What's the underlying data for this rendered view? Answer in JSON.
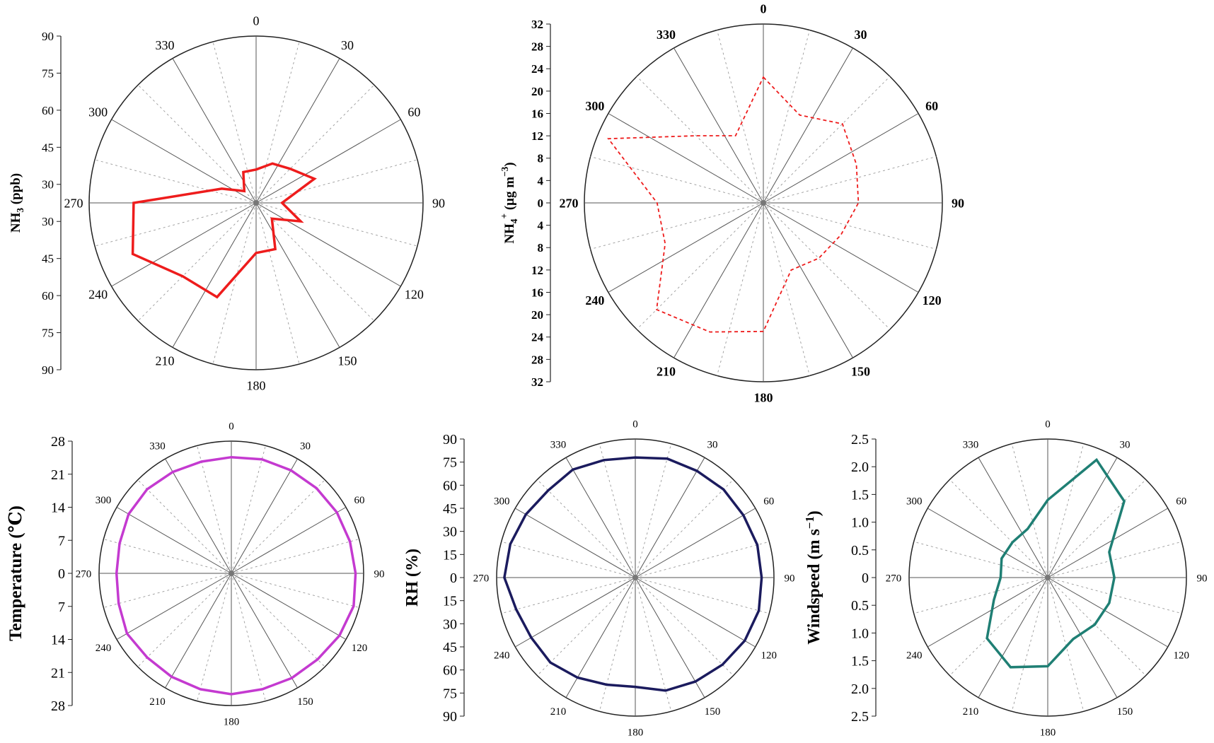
{
  "colors": {
    "nh3": "#ee1c1c",
    "nh4": "#ee1c1c",
    "temperature": "#c43ad0",
    "rh": "#1b1b5e",
    "windspeed": "#1f7f74",
    "grid": "#555555"
  },
  "chart_data": [
    {
      "id": "nh3",
      "type": "polar-line",
      "ylabel": "NH3 (ppb)",
      "angle_ticks": [
        "0",
        "30",
        "60",
        "90",
        "120",
        "150",
        "180",
        "210",
        "240",
        "270",
        "300",
        "330"
      ],
      "radial_ticks": [
        "90",
        "75",
        "60",
        "45",
        "30",
        "30",
        "45",
        "60",
        "75",
        "90"
      ],
      "rlim": [
        0,
        90
      ],
      "line_style": "solid",
      "directions": [
        0,
        22.5,
        45,
        67.5,
        90,
        112.5,
        135,
        157.5,
        180,
        202.5,
        225,
        247.5,
        270,
        292.5,
        315,
        337.5
      ],
      "values": [
        18,
        23,
        26,
        34,
        14,
        26,
        12,
        27,
        27,
        55,
        56,
        72,
        66,
        20,
        9,
        18
      ]
    },
    {
      "id": "nh4",
      "type": "polar-line",
      "ylabel": "NH4+ (μg m-3)",
      "angle_ticks": [
        "0",
        "30",
        "60",
        "90",
        "120",
        "150",
        "180",
        "210",
        "240",
        "270",
        "300",
        "330"
      ],
      "radial_ticks": [
        "32",
        "28",
        "24",
        "20",
        "16",
        "12",
        "8",
        "4",
        "0",
        "4",
        "8",
        "12",
        "16",
        "20",
        "24",
        "28",
        "32"
      ],
      "rlim": [
        0,
        32
      ],
      "line_style": "dashed",
      "directions": [
        0,
        22.5,
        45,
        67.5,
        90,
        112.5,
        135,
        157.5,
        180,
        202.5,
        225,
        247.5,
        270,
        292.5,
        315,
        337.5
      ],
      "values": [
        22.5,
        17,
        20,
        18,
        17,
        15,
        14,
        13,
        23,
        25,
        27,
        19,
        19,
        30,
        17,
        13
      ]
    },
    {
      "id": "temperature",
      "type": "polar-line",
      "ylabel": "Temperature (℃)",
      "angle_ticks": [
        "0",
        "30",
        "60",
        "90",
        "120",
        "150",
        "180",
        "210",
        "240",
        "270",
        "300",
        "330"
      ],
      "radial_ticks": [
        "28",
        "21",
        "14",
        "7",
        "0",
        "7",
        "14",
        "21",
        "28"
      ],
      "rlim": [
        0,
        28
      ],
      "line_style": "solid",
      "directions": [
        0,
        15,
        30,
        45,
        60,
        75,
        90,
        105,
        120,
        135,
        150,
        165,
        180,
        195,
        210,
        225,
        240,
        255,
        270,
        285,
        300,
        315,
        330,
        345
      ],
      "values": [
        24.6,
        25,
        25.2,
        25.5,
        25.8,
        26,
        26.3,
        26.8,
        26.4,
        25.8,
        25.6,
        25.4,
        25.6,
        25.4,
        25.3,
        25.2,
        25.5,
        24.7,
        24.3,
        24.5,
        25.1,
        25.2,
        24.8,
        24.5
      ]
    },
    {
      "id": "rh",
      "type": "polar-line",
      "ylabel": "RH (%)",
      "angle_ticks": [
        "0",
        "30",
        "60",
        "90",
        "120",
        "150",
        "180",
        "210",
        "240",
        "270",
        "300",
        "330"
      ],
      "radial_ticks": [
        "90",
        "75",
        "60",
        "45",
        "30",
        "15",
        "0",
        "15",
        "30",
        "45",
        "60",
        "75",
        "90"
      ],
      "rlim": [
        0,
        90
      ],
      "line_style": "solid",
      "directions": [
        0,
        15,
        30,
        45,
        60,
        75,
        90,
        105,
        120,
        135,
        150,
        165,
        180,
        195,
        210,
        225,
        240,
        255,
        270,
        285,
        300,
        315,
        330,
        345
      ],
      "values": [
        78,
        80,
        80,
        81,
        81,
        82,
        82,
        83,
        82,
        80,
        78,
        76,
        71,
        72,
        75,
        78,
        78,
        80,
        85,
        84,
        82,
        80,
        81,
        79
      ]
    },
    {
      "id": "windspeed",
      "type": "polar-line",
      "ylabel": "Windspeed (m s-1)",
      "angle_ticks": [
        "0",
        "30",
        "60",
        "90",
        "120",
        "150",
        "180",
        "210",
        "240",
        "270",
        "300",
        "330"
      ],
      "radial_ticks": [
        "2.5",
        "2.0",
        "1.5",
        "1.0",
        "0.5",
        "0",
        "0.5",
        "1.0",
        "1.5",
        "2.0",
        "2.5"
      ],
      "rlim": [
        0,
        2.5
      ],
      "line_style": "solid",
      "directions": [
        0,
        22.5,
        45,
        67.5,
        90,
        112.5,
        135,
        157.5,
        180,
        202.5,
        225,
        247.5,
        270,
        292.5,
        315,
        337.5
      ],
      "values": [
        1.4,
        2.3,
        1.95,
        1.2,
        1.2,
        1.2,
        1.2,
        1.2,
        1.6,
        1.75,
        1.55,
        1.05,
        0.85,
        0.9,
        0.9,
        0.95
      ]
    }
  ]
}
